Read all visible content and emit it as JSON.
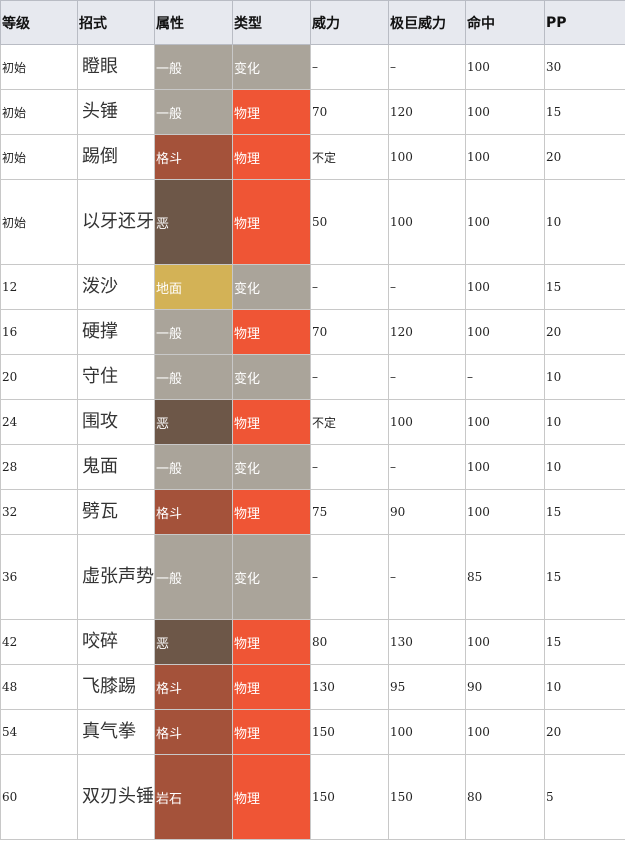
{
  "headers": [
    "等级",
    "招式",
    "属性",
    "类型",
    "威力",
    "极巨威力",
    "命中",
    "PP"
  ],
  "colors": {
    "一般": "#aaa49a",
    "格斗": "#a4523a",
    "恶": "#6d5748",
    "地面": "#d3b256",
    "岩石": "#a4523a",
    "物理": "#ef5535",
    "变化": "#aaa49a"
  },
  "rows": [
    {
      "level": "初始",
      "move": "瞪眼",
      "attr": "一般",
      "kind": "变化",
      "power": "–",
      "max_power": "–",
      "accuracy": "100",
      "pp": "30",
      "tall": false
    },
    {
      "level": "初始",
      "move": "头锤",
      "attr": "一般",
      "kind": "物理",
      "power": "70",
      "max_power": "120",
      "accuracy": "100",
      "pp": "15",
      "tall": false
    },
    {
      "level": "初始",
      "move": "踢倒",
      "attr": "格斗",
      "kind": "物理",
      "power": "不定",
      "max_power": "100",
      "accuracy": "100",
      "pp": "20",
      "tall": false
    },
    {
      "level": "初始",
      "move": "以牙还牙",
      "attr": "恶",
      "kind": "物理",
      "power": "50",
      "max_power": "100",
      "accuracy": "100",
      "pp": "10",
      "tall": true
    },
    {
      "level": "12",
      "move": "泼沙",
      "attr": "地面",
      "kind": "变化",
      "power": "–",
      "max_power": "–",
      "accuracy": "100",
      "pp": "15",
      "tall": false
    },
    {
      "level": "16",
      "move": "硬撑",
      "attr": "一般",
      "kind": "物理",
      "power": "70",
      "max_power": "120",
      "accuracy": "100",
      "pp": "20",
      "tall": false
    },
    {
      "level": "20",
      "move": "守住",
      "attr": "一般",
      "kind": "变化",
      "power": "–",
      "max_power": "–",
      "accuracy": "–",
      "pp": "10",
      "tall": false
    },
    {
      "level": "24",
      "move": "围攻",
      "attr": "恶",
      "kind": "物理",
      "power": "不定",
      "max_power": "100",
      "accuracy": "100",
      "pp": "10",
      "tall": false
    },
    {
      "level": "28",
      "move": "鬼面",
      "attr": "一般",
      "kind": "变化",
      "power": "–",
      "max_power": "–",
      "accuracy": "100",
      "pp": "10",
      "tall": false
    },
    {
      "level": "32",
      "move": "劈瓦",
      "attr": "格斗",
      "kind": "物理",
      "power": "75",
      "max_power": "90",
      "accuracy": "100",
      "pp": "15",
      "tall": false
    },
    {
      "level": "36",
      "move": "虚张声势",
      "attr": "一般",
      "kind": "变化",
      "power": "–",
      "max_power": "–",
      "accuracy": "85",
      "pp": "15",
      "tall": true
    },
    {
      "level": "42",
      "move": "咬碎",
      "attr": "恶",
      "kind": "物理",
      "power": "80",
      "max_power": "130",
      "accuracy": "100",
      "pp": "15",
      "tall": false
    },
    {
      "level": "48",
      "move": "飞膝踢",
      "attr": "格斗",
      "kind": "物理",
      "power": "130",
      "max_power": "95",
      "accuracy": "90",
      "pp": "10",
      "tall": false
    },
    {
      "level": "54",
      "move": "真气拳",
      "attr": "格斗",
      "kind": "物理",
      "power": "150",
      "max_power": "100",
      "accuracy": "100",
      "pp": "20",
      "tall": false
    },
    {
      "level": "60",
      "move": "双刃头锤",
      "attr": "岩石",
      "kind": "物理",
      "power": "150",
      "max_power": "150",
      "accuracy": "80",
      "pp": "5",
      "tall": true
    }
  ]
}
